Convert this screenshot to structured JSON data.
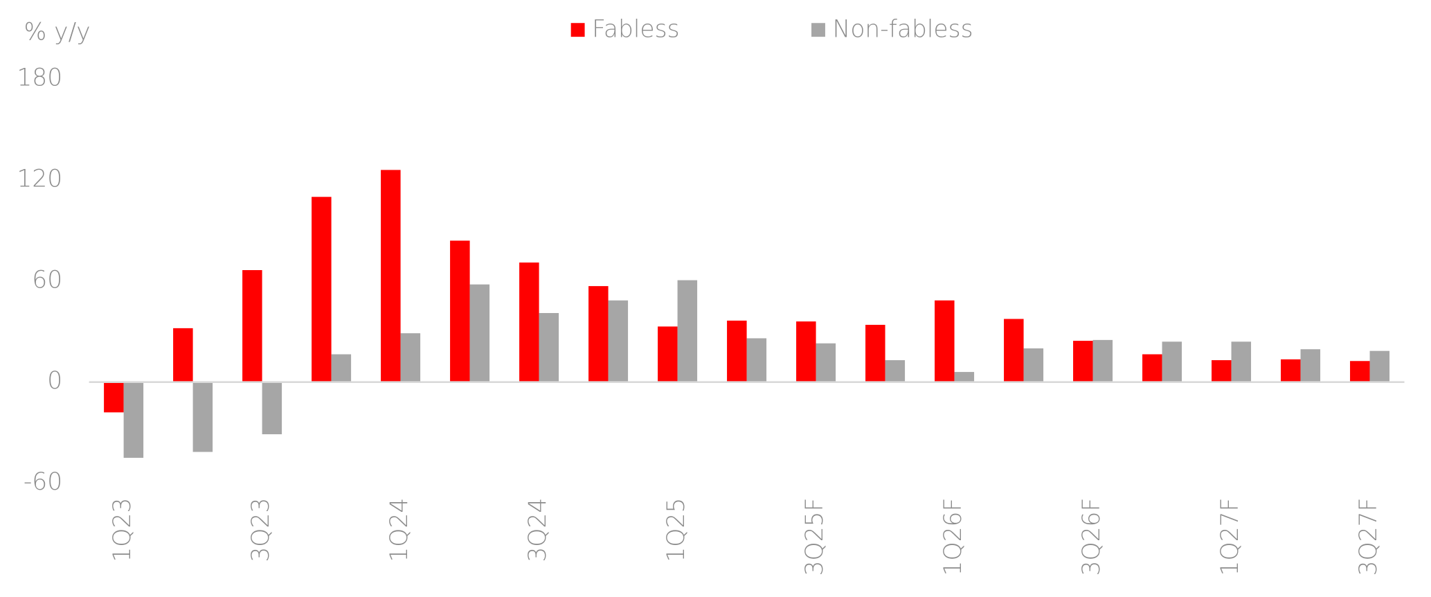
{
  "chart_data": {
    "type": "bar",
    "y_axis_label": "% y/y",
    "categories": [
      "1Q23",
      null,
      "3Q23",
      null,
      "1Q24",
      null,
      "3Q24",
      null,
      "1Q25",
      null,
      "3Q25F",
      null,
      "1Q26F",
      null,
      "3Q26F",
      null,
      "1Q27F",
      null,
      "3Q27F"
    ],
    "series": [
      {
        "name": "Fabless",
        "color": "#ff0000",
        "values": [
          -18,
          32,
          66.5,
          110,
          126,
          84,
          71,
          57,
          33,
          36.5,
          36,
          34,
          48.5,
          37.5,
          24.5,
          16.5,
          13,
          13.5,
          12.5
        ]
      },
      {
        "name": "Non-fabless",
        "color": "#a6a6a6",
        "values": [
          -45,
          -41.5,
          -31,
          16.5,
          29,
          58,
          41,
          48.5,
          60.5,
          26,
          23,
          13,
          6,
          20,
          25,
          24,
          24,
          19.5,
          18.5
        ]
      }
    ],
    "ylim": [
      -60,
      180
    ],
    "yticks": [
      -60,
      0,
      60,
      120,
      180
    ],
    "grid": false,
    "legend": "top"
  }
}
